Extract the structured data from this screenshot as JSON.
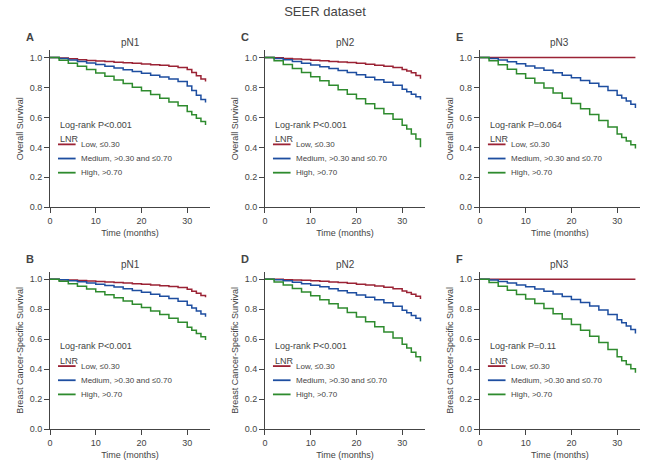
{
  "title": "SEER dataset",
  "chart_data": [
    {
      "type": "step",
      "title": "pN1",
      "annotations": [
        "A",
        "Log-rank P<0.001",
        "LNR"
      ],
      "xlabel": "Time (months)",
      "ylabel": "Overall Survival",
      "xlim": [
        0,
        35
      ],
      "xticks": [
        0,
        10,
        20,
        30
      ],
      "ylim": [
        0.0,
        1.05
      ],
      "yticks": [
        {
          "value": 0.0,
          "label": "0.0"
        },
        0.2,
        0.4,
        0.6,
        0.8,
        {
          "value": 1.0,
          "label": "1.0"
        }
      ],
      "grid": false,
      "legend": "lower left",
      "series": [
        {
          "name": "Low, ≤0.30",
          "color": "#9B2335",
          "x": [
            0,
            2,
            4,
            6,
            8,
            10,
            12,
            14,
            16,
            18,
            20,
            22,
            24,
            26,
            28,
            30,
            31,
            32,
            33,
            34
          ],
          "values": [
            1.0,
            0.997,
            0.991,
            0.985,
            0.98,
            0.977,
            0.973,
            0.969,
            0.965,
            0.961,
            0.957,
            0.952,
            0.948,
            0.942,
            0.933,
            0.92,
            0.9,
            0.878,
            0.856,
            0.84
          ]
        },
        {
          "name": "Medium, >0.30 and ≤0.70",
          "color": "#1E4EA0",
          "x": [
            0,
            2,
            4,
            6,
            8,
            10,
            12,
            14,
            16,
            18,
            20,
            22,
            24,
            26,
            28,
            30,
            31,
            32,
            33,
            34
          ],
          "values": [
            1.0,
            0.993,
            0.983,
            0.973,
            0.963,
            0.953,
            0.942,
            0.93,
            0.918,
            0.906,
            0.894,
            0.882,
            0.87,
            0.857,
            0.84,
            0.81,
            0.78,
            0.748,
            0.72,
            0.7
          ]
        },
        {
          "name": "High, >0.70",
          "color": "#2E8B2E",
          "x": [
            0,
            2,
            4,
            6,
            8,
            10,
            12,
            14,
            16,
            18,
            20,
            22,
            24,
            26,
            28,
            30,
            31,
            32,
            33,
            34
          ],
          "values": [
            1.0,
            0.982,
            0.962,
            0.941,
            0.919,
            0.897,
            0.874,
            0.85,
            0.826,
            0.802,
            0.778,
            0.753,
            0.728,
            0.703,
            0.677,
            0.64,
            0.618,
            0.595,
            0.572,
            0.55
          ]
        }
      ]
    },
    {
      "type": "step",
      "title": "pN2",
      "annotations": [
        "C",
        "Log-rank P<0.001",
        "LNR"
      ],
      "xlabel": "Time (months)",
      "ylabel": "Overall Survival",
      "xlim": [
        0,
        35
      ],
      "xticks": [
        0,
        10,
        20,
        30
      ],
      "ylim": [
        0.0,
        1.05
      ],
      "yticks": [
        {
          "value": 0.0,
          "label": "0.0"
        },
        0.2,
        0.4,
        0.6,
        0.8,
        {
          "value": 1.0,
          "label": "1.0"
        }
      ],
      "grid": false,
      "legend": "lower left",
      "series": [
        {
          "name": "Low, ≤0.30",
          "color": "#9B2335",
          "x": [
            0,
            2,
            4,
            6,
            8,
            10,
            12,
            14,
            16,
            18,
            20,
            22,
            24,
            26,
            28,
            30,
            31,
            32,
            33,
            34
          ],
          "values": [
            1.0,
            0.998,
            0.994,
            0.99,
            0.986,
            0.982,
            0.978,
            0.974,
            0.97,
            0.966,
            0.961,
            0.955,
            0.949,
            0.942,
            0.934,
            0.92,
            0.91,
            0.898,
            0.88,
            0.858
          ]
        },
        {
          "name": "Medium, >0.30 and ≤0.70",
          "color": "#1E4EA0",
          "x": [
            0,
            2,
            4,
            6,
            8,
            10,
            12,
            14,
            16,
            18,
            20,
            22,
            24,
            26,
            28,
            30,
            31,
            32,
            33,
            34
          ],
          "values": [
            1.0,
            0.994,
            0.985,
            0.974,
            0.962,
            0.95,
            0.938,
            0.926,
            0.913,
            0.899,
            0.884,
            0.868,
            0.852,
            0.835,
            0.814,
            0.788,
            0.772,
            0.755,
            0.738,
            0.72
          ]
        },
        {
          "name": "High, >0.70",
          "color": "#2E8B2E",
          "x": [
            0,
            2,
            4,
            6,
            8,
            10,
            12,
            14,
            16,
            18,
            20,
            22,
            24,
            26,
            28,
            30,
            31,
            32,
            33,
            34
          ],
          "values": [
            1.0,
            0.978,
            0.953,
            0.927,
            0.9,
            0.872,
            0.844,
            0.815,
            0.785,
            0.755,
            0.724,
            0.692,
            0.66,
            0.625,
            0.587,
            0.548,
            0.522,
            0.49,
            0.456,
            0.4
          ]
        }
      ]
    },
    {
      "type": "step",
      "title": "pN3",
      "annotations": [
        "E",
        "Log-rank P=0.064",
        "LNR"
      ],
      "xlabel": "Time (months)",
      "ylabel": "Overall Survival",
      "xlim": [
        0,
        35
      ],
      "xticks": [
        0,
        10,
        20,
        30
      ],
      "ylim": [
        0.0,
        1.05
      ],
      "yticks": [
        {
          "value": 0.0,
          "label": "0.0"
        },
        0.2,
        0.4,
        0.6,
        0.8,
        {
          "value": 1.0,
          "label": "1.0"
        }
      ],
      "grid": false,
      "legend": "lower left",
      "series": [
        {
          "name": "Low, ≤0.30",
          "color": "#9B2335",
          "x": [
            0,
            34
          ],
          "values": [
            1.0,
            1.0
          ]
        },
        {
          "name": "Medium, >0.30 and ≤0.70",
          "color": "#1E4EA0",
          "x": [
            0,
            2,
            4,
            6,
            8,
            10,
            12,
            14,
            16,
            18,
            20,
            22,
            24,
            26,
            28,
            30,
            31,
            32,
            33,
            34
          ],
          "values": [
            1.0,
            0.993,
            0.983,
            0.971,
            0.958,
            0.944,
            0.93,
            0.914,
            0.898,
            0.882,
            0.865,
            0.847,
            0.828,
            0.806,
            0.779,
            0.748,
            0.73,
            0.71,
            0.688,
            0.662
          ]
        },
        {
          "name": "High, >0.70",
          "color": "#2E8B2E",
          "x": [
            0,
            2,
            4,
            6,
            8,
            10,
            12,
            14,
            16,
            18,
            20,
            22,
            24,
            26,
            28,
            30,
            31,
            32,
            33,
            34
          ],
          "values": [
            1.0,
            0.978,
            0.951,
            0.922,
            0.892,
            0.861,
            0.829,
            0.796,
            0.763,
            0.728,
            0.693,
            0.657,
            0.62,
            0.58,
            0.536,
            0.49,
            0.466,
            0.442,
            0.418,
            0.393
          ]
        }
      ]
    },
    {
      "type": "step",
      "title": "pN1",
      "annotations": [
        "B",
        "Log-rank P<0.001",
        "LNR"
      ],
      "xlabel": "Time (months)",
      "ylabel": "Breast Cancer-Specific Survival",
      "xlim": [
        0,
        35
      ],
      "xticks": [
        0,
        10,
        20,
        30
      ],
      "ylim": [
        0.0,
        1.05
      ],
      "yticks": [
        {
          "value": 0.0,
          "label": "0.0"
        },
        0.2,
        0.4,
        0.6,
        0.8,
        {
          "value": 1.0,
          "label": "1.0"
        }
      ],
      "grid": false,
      "legend": "lower left",
      "series": [
        {
          "name": "Low, ≤0.30",
          "color": "#9B2335",
          "x": [
            0,
            2,
            4,
            6,
            8,
            10,
            12,
            14,
            16,
            18,
            20,
            22,
            24,
            26,
            28,
            30,
            31,
            32,
            33,
            34
          ],
          "values": [
            1.0,
            0.997,
            0.994,
            0.991,
            0.988,
            0.985,
            0.982,
            0.978,
            0.974,
            0.97,
            0.966,
            0.961,
            0.957,
            0.951,
            0.944,
            0.933,
            0.92,
            0.906,
            0.892,
            0.88
          ]
        },
        {
          "name": "Medium, >0.30 and ≤0.70",
          "color": "#1E4EA0",
          "x": [
            0,
            2,
            4,
            6,
            8,
            10,
            12,
            14,
            16,
            18,
            20,
            22,
            24,
            26,
            28,
            30,
            31,
            32,
            33,
            34
          ],
          "values": [
            1.0,
            0.996,
            0.99,
            0.983,
            0.975,
            0.967,
            0.958,
            0.948,
            0.937,
            0.925,
            0.913,
            0.9,
            0.886,
            0.871,
            0.852,
            0.826,
            0.808,
            0.788,
            0.768,
            0.75
          ]
        },
        {
          "name": "High, >0.70",
          "color": "#2E8B2E",
          "x": [
            0,
            2,
            4,
            6,
            8,
            10,
            12,
            14,
            16,
            18,
            20,
            22,
            24,
            26,
            28,
            30,
            31,
            32,
            33,
            34
          ],
          "values": [
            1.0,
            0.986,
            0.97,
            0.953,
            0.935,
            0.916,
            0.896,
            0.876,
            0.855,
            0.833,
            0.811,
            0.788,
            0.764,
            0.739,
            0.712,
            0.68,
            0.66,
            0.638,
            0.616,
            0.595
          ]
        }
      ]
    },
    {
      "type": "step",
      "title": "pN2",
      "annotations": [
        "D",
        "Log-rank P<0.001",
        "LNR"
      ],
      "xlabel": "Time (months)",
      "ylabel": "Breast Cancer-Specific Survival",
      "xlim": [
        0,
        35
      ],
      "xticks": [
        0,
        10,
        20,
        30
      ],
      "ylim": [
        0.0,
        1.05
      ],
      "yticks": [
        {
          "value": 0.0,
          "label": "0.0"
        },
        0.2,
        0.4,
        0.6,
        0.8,
        {
          "value": 1.0,
          "label": "1.0"
        }
      ],
      "grid": false,
      "legend": "lower left",
      "series": [
        {
          "name": "Low, ≤0.30",
          "color": "#9B2335",
          "x": [
            0,
            2,
            4,
            6,
            8,
            10,
            12,
            14,
            16,
            18,
            20,
            22,
            24,
            26,
            28,
            30,
            31,
            32,
            33,
            34
          ],
          "values": [
            1.0,
            0.999,
            0.997,
            0.995,
            0.993,
            0.99,
            0.986,
            0.982,
            0.978,
            0.973,
            0.967,
            0.961,
            0.954,
            0.946,
            0.936,
            0.922,
            0.912,
            0.9,
            0.886,
            0.868
          ]
        },
        {
          "name": "Medium, >0.30 and ≤0.70",
          "color": "#1E4EA0",
          "x": [
            0,
            2,
            4,
            6,
            8,
            10,
            12,
            14,
            16,
            18,
            20,
            22,
            24,
            26,
            28,
            30,
            31,
            32,
            33,
            34
          ],
          "values": [
            1.0,
            0.996,
            0.989,
            0.98,
            0.97,
            0.96,
            0.949,
            0.937,
            0.923,
            0.909,
            0.895,
            0.879,
            0.862,
            0.843,
            0.82,
            0.792,
            0.776,
            0.758,
            0.74,
            0.72
          ]
        },
        {
          "name": "High, >0.70",
          "color": "#2E8B2E",
          "x": [
            0,
            2,
            4,
            6,
            8,
            10,
            12,
            14,
            16,
            18,
            20,
            22,
            24,
            26,
            28,
            30,
            31,
            32,
            33,
            34
          ],
          "values": [
            1.0,
            0.982,
            0.961,
            0.938,
            0.914,
            0.889,
            0.863,
            0.836,
            0.808,
            0.778,
            0.748,
            0.716,
            0.683,
            0.647,
            0.608,
            0.565,
            0.54,
            0.512,
            0.482,
            0.45
          ]
        }
      ]
    },
    {
      "type": "step",
      "title": "pN3",
      "annotations": [
        "F",
        "Log-rank P=0.11",
        "LNR"
      ],
      "xlabel": "Time (months)",
      "ylabel": "Breast Cancer-Specific Survival",
      "xlim": [
        0,
        35
      ],
      "xticks": [
        0,
        10,
        20,
        30
      ],
      "ylim": [
        0.0,
        1.05
      ],
      "yticks": [
        {
          "value": 0.0,
          "label": "0.0"
        },
        0.2,
        0.4,
        0.6,
        0.8,
        {
          "value": 1.0,
          "label": "1.0"
        }
      ],
      "grid": false,
      "legend": "lower left",
      "series": [
        {
          "name": "Low, ≤0.30",
          "color": "#9B2335",
          "x": [
            0,
            34
          ],
          "values": [
            1.0,
            1.0
          ]
        },
        {
          "name": "Medium, >0.30 and ≤0.70",
          "color": "#1E4EA0",
          "x": [
            0,
            2,
            4,
            6,
            8,
            10,
            12,
            14,
            16,
            18,
            20,
            22,
            24,
            26,
            28,
            30,
            31,
            32,
            33,
            34
          ],
          "values": [
            1.0,
            0.994,
            0.985,
            0.974,
            0.962,
            0.949,
            0.935,
            0.919,
            0.902,
            0.884,
            0.865,
            0.844,
            0.821,
            0.795,
            0.764,
            0.73,
            0.71,
            0.688,
            0.664,
            0.638
          ]
        },
        {
          "name": "High, >0.70",
          "color": "#2E8B2E",
          "x": [
            0,
            2,
            4,
            6,
            8,
            10,
            12,
            14,
            16,
            18,
            20,
            22,
            24,
            26,
            28,
            30,
            31,
            32,
            33,
            34
          ],
          "values": [
            1.0,
            0.978,
            0.953,
            0.926,
            0.898,
            0.868,
            0.837,
            0.804,
            0.77,
            0.734,
            0.698,
            0.66,
            0.62,
            0.578,
            0.531,
            0.482,
            0.456,
            0.43,
            0.403,
            0.376
          ]
        }
      ]
    }
  ]
}
